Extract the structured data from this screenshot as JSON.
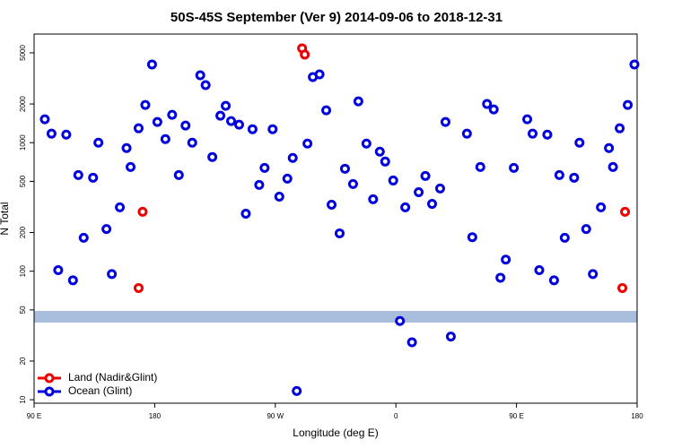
{
  "chart_data": {
    "type": "scatter",
    "title": "50S-45S September (Ver 9)   2014-09-06 to 2018-12-31",
    "x_label": "Longitude (deg E)",
    "y_label": "N Total",
    "xlim": [
      90,
      540
    ],
    "xticks": [
      {
        "value": 90,
        "label": "90 E"
      },
      180,
      {
        "value": 270,
        "label": "90 W"
      },
      {
        "value": 360,
        "label": "0"
      },
      {
        "value": 450,
        "label": "90 E"
      },
      {
        "value": 540,
        "label": "180"
      }
    ],
    "ylim": [
      9.4,
      7000
    ],
    "yticks": [
      10,
      20,
      50,
      100,
      200,
      500,
      1000,
      2000,
      5000
    ],
    "log_y": true,
    "legend": "bottom-left",
    "series": [
      {
        "name": "Land (Nadir&Glint)",
        "color": "#ee0000",
        "x": [
          168,
          171,
          290,
          292,
          529,
          531
        ],
        "values": [
          74,
          290,
          5420,
          4845,
          74,
          290
        ]
      },
      {
        "name": "Ocean (Glint)",
        "color": "#0000dd",
        "x": [
          98,
          103,
          108,
          114,
          119,
          123,
          127,
          134,
          138,
          144,
          148,
          154,
          159,
          162,
          168,
          173,
          178,
          182,
          188,
          193,
          198,
          203,
          208,
          214,
          218,
          223,
          229,
          233,
          237,
          243,
          248,
          253,
          258,
          262,
          268,
          273,
          279,
          283,
          286,
          294,
          298,
          303,
          308,
          312,
          318,
          322,
          328,
          332,
          338,
          343,
          348,
          352,
          358,
          363,
          367,
          372,
          377,
          382,
          387,
          393,
          397,
          401,
          413,
          417,
          423,
          428,
          433,
          438,
          442,
          448,
          458,
          462,
          467,
          473,
          478,
          482,
          486,
          493,
          497,
          502,
          507,
          513,
          519,
          522,
          527,
          533,
          538
        ],
        "values": [
          1520,
          1175,
          102,
          1156,
          85,
          560,
          182,
          534,
          1000,
          213,
          95,
          314,
          908,
          647,
          1294,
          1966,
          4060,
          1449,
          1066,
          1647,
          560,
          1358,
          1000,
          3345,
          2803,
          773,
          1622,
          1935,
          1472,
          1380,
          280,
          1273,
          469,
          637,
          1273,
          380,
          525,
          761,
          11.7,
          984,
          3240,
          3400,
          1786,
          329,
          197,
          627,
          477,
          2097,
          984,
          363,
          851,
          713,
          508,
          41,
          314,
          28,
          412,
          551,
          334,
          440,
          1449,
          31,
          1175,
          184,
          647,
          2000,
          1815,
          89,
          123,
          637,
          1520,
          1175,
          102,
          1156,
          85,
          560,
          182,
          534,
          1000,
          213,
          95,
          314,
          908,
          647,
          1294,
          1966,
          4060
        ]
      }
    ]
  }
}
